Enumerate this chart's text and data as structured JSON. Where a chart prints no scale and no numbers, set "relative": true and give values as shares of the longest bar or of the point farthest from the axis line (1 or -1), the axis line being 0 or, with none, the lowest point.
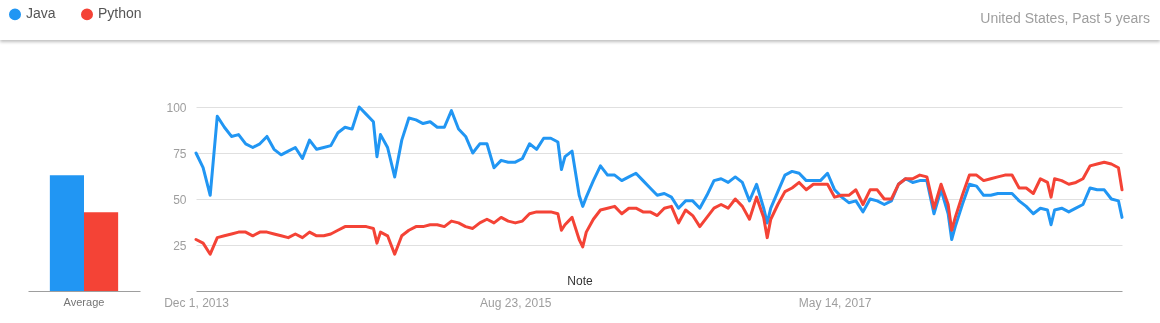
{
  "chart_data": [
    {
      "type": "bar",
      "categories": [
        "Average"
      ],
      "relative": true,
      "legend": "top left",
      "series": [
        {
          "name": "Java",
          "color": "#2196f3",
          "values": [
            1
          ]
        },
        {
          "name": "Python",
          "color": "#f44336",
          "values": [
            0.68
          ]
        }
      ]
    },
    {
      "type": "line",
      "subtitle": "United States, Past 5 years",
      "legend": "top left",
      "grid": "y",
      "annotations": [
        "Note"
      ],
      "xlim": [
        "2013-12-01",
        "2018-12-02"
      ],
      "xticks": [
        {
          "value": "2013-12-01",
          "label": "Dec 1, 2013"
        },
        {
          "value": "2015-08-23",
          "label": "Aug 23, 2015"
        },
        {
          "value": "2017-05-14",
          "label": "May 14, 2017"
        }
      ],
      "ylim": [
        0,
        100
      ],
      "yticks": [
        25,
        50,
        75,
        100
      ],
      "x": [
        "2013-12-01",
        "2013-12-15",
        "2013-12-29",
        "2014-01-12",
        "2014-01-26",
        "2014-02-09",
        "2014-02-23",
        "2014-03-09",
        "2014-03-23",
        "2014-04-06",
        "2014-04-20",
        "2014-05-04",
        "2014-05-18",
        "2014-06-01",
        "2014-06-15",
        "2014-06-29",
        "2014-07-13",
        "2014-07-27",
        "2014-08-10",
        "2014-08-24",
        "2014-09-07",
        "2014-09-21",
        "2014-10-05",
        "2014-10-19",
        "2014-11-02",
        "2014-11-16",
        "2014-11-23",
        "2014-11-30",
        "2014-12-14",
        "2014-12-28",
        "2015-01-11",
        "2015-01-25",
        "2015-02-08",
        "2015-02-22",
        "2015-03-08",
        "2015-03-22",
        "2015-04-05",
        "2015-04-19",
        "2015-05-03",
        "2015-05-17",
        "2015-05-31",
        "2015-06-14",
        "2015-06-28",
        "2015-07-12",
        "2015-07-26",
        "2015-08-09",
        "2015-08-23",
        "2015-09-06",
        "2015-09-20",
        "2015-10-04",
        "2015-10-18",
        "2015-11-01",
        "2015-11-15",
        "2015-11-22",
        "2015-11-29",
        "2015-12-13",
        "2015-12-27",
        "2016-01-03",
        "2016-01-10",
        "2016-01-24",
        "2016-02-07",
        "2016-02-21",
        "2016-03-06",
        "2016-03-20",
        "2016-04-03",
        "2016-04-17",
        "2016-05-01",
        "2016-05-15",
        "2016-05-29",
        "2016-06-12",
        "2016-06-26",
        "2016-07-10",
        "2016-07-24",
        "2016-08-07",
        "2016-08-21",
        "2016-09-04",
        "2016-09-18",
        "2016-10-02",
        "2016-10-16",
        "2016-10-30",
        "2016-11-13",
        "2016-11-27",
        "2016-12-11",
        "2016-12-25",
        "2017-01-01",
        "2017-01-08",
        "2017-01-22",
        "2017-02-05",
        "2017-02-19",
        "2017-03-05",
        "2017-03-19",
        "2017-04-02",
        "2017-04-16",
        "2017-04-30",
        "2017-05-14",
        "2017-05-28",
        "2017-06-11",
        "2017-06-25",
        "2017-07-09",
        "2017-07-23",
        "2017-08-06",
        "2017-08-20",
        "2017-09-03",
        "2017-09-17",
        "2017-10-01",
        "2017-10-15",
        "2017-10-29",
        "2017-11-12",
        "2017-11-26",
        "2017-12-10",
        "2017-12-24",
        "2017-12-31",
        "2018-01-07",
        "2018-01-21",
        "2018-02-04",
        "2018-02-18",
        "2018-03-04",
        "2018-03-18",
        "2018-04-01",
        "2018-04-15",
        "2018-04-29",
        "2018-05-13",
        "2018-05-27",
        "2018-06-10",
        "2018-06-24",
        "2018-07-08",
        "2018-07-15",
        "2018-07-22",
        "2018-08-05",
        "2018-08-19",
        "2018-09-02",
        "2018-09-16",
        "2018-09-30",
        "2018-10-14",
        "2018-10-28",
        "2018-11-11",
        "2018-11-25",
        "2018-12-02"
      ],
      "series": [
        {
          "name": "Java",
          "color": "#2196f3",
          "values": [
            75,
            67,
            52,
            95,
            89,
            84,
            85,
            80,
            78,
            80,
            84,
            77,
            74,
            76,
            78,
            72,
            82,
            77,
            78,
            79,
            86,
            89,
            88,
            100,
            96,
            92,
            73,
            85,
            78,
            62,
            82,
            94,
            93,
            91,
            92,
            89,
            89,
            98,
            88,
            84,
            75,
            80,
            80,
            67,
            71,
            70,
            70,
            72,
            80,
            77,
            83,
            83,
            81,
            66,
            73,
            76,
            52,
            46,
            51,
            60,
            68,
            63,
            63,
            60,
            62,
            64,
            60,
            56,
            52,
            53,
            51,
            45,
            49,
            49,
            45,
            52,
            60,
            61,
            59,
            62,
            59,
            49,
            58,
            45,
            37,
            45,
            54,
            63,
            65,
            64,
            60,
            60,
            60,
            64,
            55,
            51,
            48,
            49,
            43,
            50,
            49,
            47,
            49,
            58,
            61,
            59,
            60,
            60,
            42,
            55,
            42,
            28,
            35,
            47,
            58,
            57,
            52,
            52,
            53,
            53,
            53,
            49,
            46,
            42,
            45,
            44,
            36,
            44,
            45,
            43,
            45,
            47,
            56,
            55,
            55,
            50,
            49,
            40
          ]
        },
        {
          "name": "Python",
          "color": "#f44336",
          "values": [
            28,
            26,
            20,
            29,
            30,
            31,
            32,
            32,
            30,
            32,
            32,
            31,
            30,
            29,
            31,
            29,
            32,
            30,
            30,
            31,
            33,
            35,
            35,
            35,
            35,
            34,
            26,
            32,
            30,
            20,
            30,
            33,
            35,
            35,
            36,
            36,
            35,
            38,
            37,
            35,
            34,
            37,
            39,
            37,
            40,
            38,
            37,
            38,
            42,
            43,
            43,
            43,
            42,
            33,
            36,
            40,
            28,
            24,
            32,
            39,
            44,
            45,
            46,
            42,
            45,
            45,
            43,
            43,
            41,
            45,
            46,
            37,
            44,
            41,
            35,
            40,
            45,
            47,
            45,
            50,
            46,
            39,
            51,
            40,
            29,
            39,
            47,
            54,
            56,
            59,
            55,
            58,
            58,
            58,
            51,
            52,
            52,
            55,
            47,
            55,
            55,
            50,
            50,
            58,
            61,
            61,
            63,
            62,
            45,
            58,
            47,
            33,
            40,
            52,
            63,
            63,
            60,
            61,
            62,
            63,
            63,
            56,
            56,
            53,
            61,
            59,
            51,
            61,
            60,
            58,
            59,
            61,
            68,
            69,
            70,
            69,
            67,
            55
          ]
        }
      ]
    }
  ]
}
